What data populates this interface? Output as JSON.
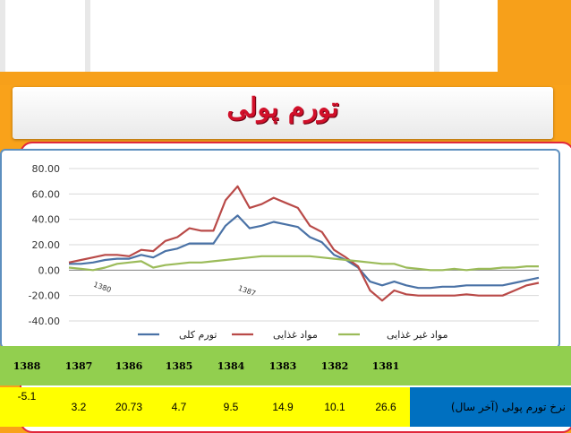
{
  "slide": {
    "title": "تورم پولی"
  },
  "chart_data": {
    "type": "line",
    "ylim": [
      -40,
      80
    ],
    "yticks": [
      "-40.00",
      "-20.00",
      "0.00",
      "20.00",
      "40.00",
      "60.00",
      "80.00"
    ],
    "grid": true,
    "legend_position": "bottom",
    "point_count": 40,
    "x_labels": [
      "1380",
      "1387"
    ],
    "series": [
      {
        "name": "تورم کلی",
        "color": "#4a72a6",
        "values": [
          5,
          5,
          6,
          8,
          9,
          9,
          12,
          10,
          15,
          17,
          21,
          21,
          21,
          35,
          43,
          33,
          35,
          38,
          36,
          34,
          26,
          22,
          12,
          8,
          2,
          -9,
          -12,
          -9,
          -12,
          -14,
          -14,
          -13,
          -13,
          -12,
          -12,
          -12,
          -12,
          -10,
          -8,
          -6
        ]
      },
      {
        "name": "مواد غذایی",
        "color": "#b94a48",
        "values": [
          6,
          8,
          10,
          12,
          12,
          11,
          16,
          15,
          23,
          26,
          33,
          31,
          31,
          55,
          66,
          49,
          52,
          57,
          53,
          49,
          35,
          30,
          16,
          10,
          3,
          -16,
          -24,
          -16,
          -19,
          -20,
          -20,
          -20,
          -20,
          -19,
          -20,
          -20,
          -20,
          -16,
          -12,
          -10
        ]
      },
      {
        "name": "مواد غیر غذایی",
        "color": "#9bbb59",
        "values": [
          2,
          1,
          0,
          2,
          5,
          6,
          7,
          2,
          4,
          5,
          6,
          6,
          7,
          8,
          9,
          10,
          11,
          11,
          11,
          11,
          11,
          10,
          9,
          8,
          7,
          6,
          5,
          5,
          2,
          1,
          0,
          0,
          1,
          0,
          1,
          1,
          2,
          2,
          3,
          3
        ]
      }
    ]
  },
  "table": {
    "years": [
      "1388",
      "1387",
      "1386",
      "1385",
      "1384",
      "1383",
      "1382",
      "1381"
    ],
    "values": [
      "-5.1",
      "3.2",
      "20.73",
      "4.7",
      "9.5",
      "14.9",
      "10.1",
      "26.6"
    ],
    "row_label": "نرخ تورم پولی (آخر سال)"
  }
}
